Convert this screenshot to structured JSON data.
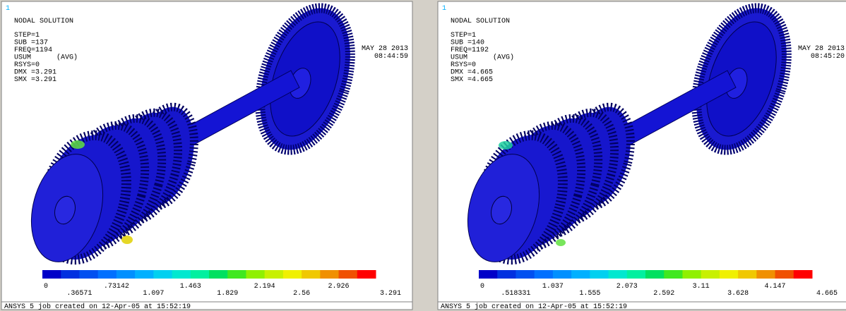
{
  "panels": [
    {
      "window_number": "1",
      "title": "NODAL SOLUTION",
      "info": [
        "STEP=1",
        "SUB =137",
        "FREQ=1194",
        "USUM      (AVG)",
        "RSYS=0",
        "DMX =3.291",
        "SMX =3.291"
      ],
      "date": "MAY 28 2013",
      "time": "08:44:59",
      "legend_labels": [
        "0",
        ".36571",
        ".73142",
        "1.097",
        "1.463",
        "1.829",
        "2.194",
        "2.56",
        "2.926",
        "3.291"
      ],
      "footer": "ANSYS 5 job created on 12-Apr-05 at 15:52:19"
    },
    {
      "window_number": "1",
      "title": "NODAL SOLUTION",
      "info": [
        "STEP=1",
        "SUB =140",
        "FREQ=1192",
        "USUM      (AVG)",
        "RSYS=0",
        "DMX =4.665",
        "SMX =4.665"
      ],
      "date": "MAY 28 2013",
      "time": "08:45:20",
      "legend_labels": [
        "0",
        ".518331",
        "1.037",
        "1.555",
        "2.073",
        "2.592",
        "3.11",
        "3.628",
        "4.147",
        "4.665"
      ],
      "footer": "ANSYS 5 job created on 12-Apr-05 at 15:52:19"
    }
  ]
}
